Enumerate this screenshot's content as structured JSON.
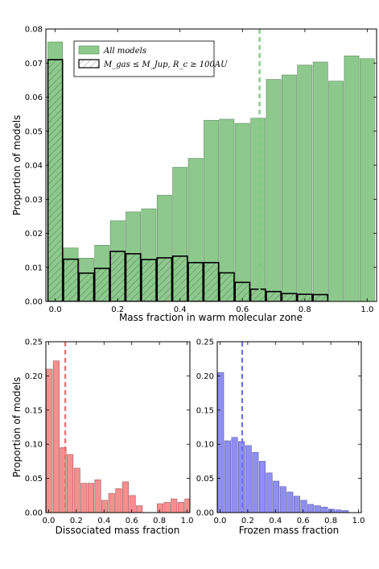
{
  "chart_data": [
    {
      "type": "bar",
      "name": "top",
      "xlabel": "Mass fraction in warm molecular zone",
      "ylabel": "Proportion of models",
      "xlim": [
        -0.03,
        1.03
      ],
      "ylim": [
        0,
        0.08
      ],
      "xticks": [
        0.0,
        0.2,
        0.4,
        0.6,
        0.8,
        1.0
      ],
      "xtick_labels": [
        "0.0",
        "0.2",
        "0.4",
        "0.6",
        "0.8",
        "1.0"
      ],
      "yticks": [
        0.0,
        0.01,
        0.02,
        0.03,
        0.04,
        0.05,
        0.06,
        0.07,
        0.08
      ],
      "ytick_labels": [
        "0.00",
        "0.01",
        "0.02",
        "0.03",
        "0.04",
        "0.05",
        "0.06",
        "0.07",
        "0.08"
      ],
      "bin_edges": [
        -0.025,
        0.025,
        0.075,
        0.125,
        0.175,
        0.225,
        0.275,
        0.325,
        0.375,
        0.425,
        0.475,
        0.525,
        0.575,
        0.625,
        0.675,
        0.725,
        0.775,
        0.825,
        0.875,
        0.925,
        0.975,
        1.025
      ],
      "series": [
        {
          "name": "All models",
          "style": "filled",
          "color": "#8dc98d",
          "edge": "#5e8a5e",
          "values": [
            0.0762,
            0.0157,
            0.0127,
            0.0165,
            0.0237,
            0.0263,
            0.0272,
            0.0312,
            0.0394,
            0.042,
            0.0532,
            0.0535,
            0.0523,
            0.0538,
            0.0652,
            0.0665,
            0.0694,
            0.0703,
            0.0647,
            0.0721,
            0.0713
          ]
        },
        {
          "name": "M_gas ≤ M_Jup, R_c ≥ 100AU",
          "style": "hatched",
          "color": "#000000",
          "values": [
            0.071,
            0.0124,
            0.0083,
            0.0097,
            0.0147,
            0.014,
            0.0123,
            0.0128,
            0.0133,
            0.0114,
            0.0114,
            0.0084,
            0.0056,
            0.0036,
            0.0029,
            0.0023,
            0.0021,
            0.002,
            0,
            0,
            0
          ]
        }
      ],
      "vline": {
        "x": 0.655,
        "color": "#7ccc7c"
      },
      "legend": {
        "position": "top-left",
        "entries": [
          {
            "label": "All models",
            "style": "filled"
          },
          {
            "label": "M_gas ≤ M_Jup, R_c ≥ 100AU",
            "style": "hatched"
          }
        ]
      }
    },
    {
      "type": "bar",
      "name": "bottom-left",
      "xlabel": "Dissociated mass fraction",
      "ylabel": "Proportion of models",
      "xlim": [
        -0.02,
        1.02
      ],
      "ylim": [
        0,
        0.25
      ],
      "xticks": [
        0.0,
        0.2,
        0.4,
        0.6,
        0.8,
        1.0
      ],
      "xtick_labels": [
        "0.0",
        "0.2",
        "0.4",
        "0.6",
        "0.8",
        "1.0"
      ],
      "yticks": [
        0.0,
        0.05,
        0.1,
        0.15,
        0.2,
        0.25
      ],
      "ytick_labels": [
        "0.00",
        "0.05",
        "0.10",
        "0.15",
        "0.20",
        "0.25"
      ],
      "bin_edges": [
        -0.02,
        0.03,
        0.08,
        0.13,
        0.18,
        0.23,
        0.28,
        0.33,
        0.38,
        0.43,
        0.48,
        0.53,
        0.58,
        0.63,
        0.68,
        0.73,
        0.78,
        0.83,
        0.88,
        0.93,
        0.98,
        1.03
      ],
      "series": [
        {
          "name": "",
          "style": "filled",
          "color": "#f5908f",
          "edge": "#a05858",
          "values": [
            0.21,
            0.222,
            0.095,
            0.085,
            0.065,
            0.043,
            0.043,
            0.048,
            0.018,
            0.028,
            0.035,
            0.045,
            0.025,
            0.01,
            0,
            0,
            0.013,
            0.015,
            0.02,
            0.015,
            0.02
          ]
        }
      ],
      "vline": {
        "x": 0.12,
        "color": "#ee6f6f"
      }
    },
    {
      "type": "bar",
      "name": "bottom-right",
      "xlabel": "Frozen mass fraction",
      "ylabel": "",
      "xlim": [
        -0.02,
        1.02
      ],
      "ylim": [
        0,
        0.25
      ],
      "xticks": [
        0.0,
        0.2,
        0.4,
        0.6,
        0.8,
        1.0
      ],
      "xtick_labels": [
        "0.0",
        "0.2",
        "0.4",
        "0.6",
        "0.8",
        "1.0"
      ],
      "yticks": [
        0.0,
        0.05,
        0.1,
        0.15,
        0.2,
        0.25
      ],
      "ytick_labels": [
        "0.00",
        "0.05",
        "0.10",
        "0.15",
        "0.20",
        "0.25"
      ],
      "bin_edges": [
        -0.02,
        0.03,
        0.08,
        0.13,
        0.18,
        0.23,
        0.28,
        0.33,
        0.38,
        0.43,
        0.48,
        0.53,
        0.58,
        0.63,
        0.68,
        0.73,
        0.78,
        0.83,
        0.88,
        0.93,
        0.98
      ],
      "series": [
        {
          "name": "",
          "style": "filled",
          "color": "#8f8ff2",
          "edge": "#5858a8",
          "values": [
            0.205,
            0.105,
            0.11,
            0.104,
            0.098,
            0.088,
            0.075,
            0.058,
            0.046,
            0.038,
            0.03,
            0.024,
            0.018,
            0.012,
            0.01,
            0.008,
            0.005,
            0.004,
            0.003,
            0
          ]
        }
      ],
      "vline": {
        "x": 0.16,
        "color": "#6f6fee"
      }
    }
  ]
}
